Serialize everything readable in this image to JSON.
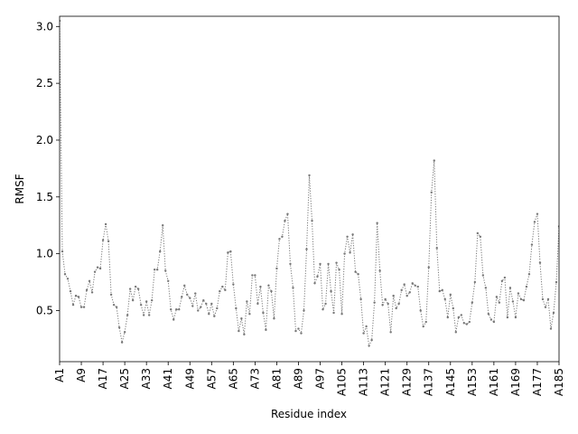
{
  "chart_data": {
    "type": "line",
    "xlabel": "Residue index",
    "ylabel": "RMSF",
    "categories": [
      "A1",
      null,
      null,
      null,
      null,
      null,
      null,
      null,
      "A9",
      null,
      null,
      null,
      null,
      null,
      null,
      null,
      "A17",
      null,
      null,
      null,
      null,
      null,
      null,
      null,
      "A25",
      null,
      null,
      null,
      null,
      null,
      null,
      null,
      "A33",
      null,
      null,
      null,
      null,
      null,
      null,
      null,
      "A41",
      null,
      null,
      null,
      null,
      null,
      null,
      null,
      "A49",
      null,
      null,
      null,
      null,
      null,
      null,
      null,
      "A57",
      null,
      null,
      null,
      null,
      null,
      null,
      null,
      "A65",
      null,
      null,
      null,
      null,
      null,
      null,
      null,
      "A73",
      null,
      null,
      null,
      null,
      null,
      null,
      null,
      "A81",
      null,
      null,
      null,
      null,
      null,
      null,
      null,
      "A89",
      null,
      null,
      null,
      null,
      null,
      null,
      null,
      "A97",
      null,
      null,
      null,
      null,
      null,
      null,
      null,
      "A105",
      null,
      null,
      null,
      null,
      null,
      null,
      null,
      "A113",
      null,
      null,
      null,
      null,
      null,
      null,
      null,
      "A121",
      null,
      null,
      null,
      null,
      null,
      null,
      null,
      "A129",
      null,
      null,
      null,
      null,
      null,
      null,
      null,
      "A137",
      null,
      null,
      null,
      null,
      null,
      null,
      null,
      "A145",
      null,
      null,
      null,
      null,
      null,
      null,
      null,
      "A153",
      null,
      null,
      null,
      null,
      null,
      null,
      null,
      "A161",
      null,
      null,
      null,
      null,
      null,
      null,
      null,
      "A169",
      null,
      null,
      null,
      null,
      null,
      null,
      null,
      "A177",
      null,
      null,
      null,
      null,
      null,
      null,
      null,
      "A185"
    ],
    "series": [
      {
        "color": "#777777",
        "values": [
          3.05,
          1.02,
          0.82,
          0.78,
          0.67,
          0.55,
          0.63,
          0.62,
          0.53,
          0.53,
          0.68,
          0.76,
          0.66,
          0.84,
          0.88,
          0.87,
          1.12,
          1.26,
          1.11,
          0.64,
          0.55,
          0.53,
          0.35,
          0.22,
          0.31,
          0.46,
          0.69,
          0.59,
          0.71,
          0.69,
          0.55,
          0.46,
          0.58,
          0.46,
          0.59,
          0.86,
          0.86,
          1.02,
          1.25,
          0.85,
          0.76,
          0.51,
          0.42,
          0.51,
          0.51,
          0.62,
          0.72,
          0.64,
          0.61,
          0.54,
          0.65,
          0.5,
          0.53,
          0.59,
          0.56,
          0.47,
          0.56,
          0.45,
          0.52,
          0.67,
          0.71,
          0.68,
          1.01,
          1.02,
          0.73,
          0.52,
          0.32,
          0.43,
          0.29,
          0.58,
          0.47,
          0.81,
          0.81,
          0.56,
          0.71,
          0.48,
          0.33,
          0.72,
          0.67,
          0.43,
          0.87,
          1.13,
          1.15,
          1.29,
          1.35,
          0.91,
          0.7,
          0.32,
          0.34,
          0.3,
          0.5,
          1.04,
          1.69,
          1.29,
          0.74,
          0.8,
          0.91,
          0.51,
          0.56,
          0.91,
          0.67,
          0.48,
          0.92,
          0.86,
          0.47,
          1.0,
          1.15,
          1.01,
          1.17,
          0.84,
          0.82,
          0.6,
          0.3,
          0.36,
          0.19,
          0.24,
          0.57,
          1.27,
          0.85,
          0.55,
          0.6,
          0.56,
          0.31,
          0.63,
          0.52,
          0.56,
          0.68,
          0.73,
          0.63,
          0.66,
          0.74,
          0.72,
          0.71,
          0.5,
          0.36,
          0.4,
          0.88,
          1.54,
          1.82,
          1.05,
          0.67,
          0.68,
          0.6,
          0.44,
          0.64,
          0.52,
          0.31,
          0.44,
          0.46,
          0.39,
          0.38,
          0.4,
          0.57,
          0.75,
          1.18,
          1.15,
          0.81,
          0.7,
          0.47,
          0.42,
          0.4,
          0.62,
          0.57,
          0.76,
          0.79,
          0.44,
          0.7,
          0.58,
          0.44,
          0.65,
          0.6,
          0.59,
          0.71,
          0.82,
          1.08,
          1.28,
          1.35,
          0.92,
          0.6,
          0.53,
          0.6,
          0.34,
          0.48,
          0.75,
          1.24
        ]
      }
    ],
    "ylim": [
      0.05,
      3.09
    ],
    "yticks": [
      0.5,
      {
        "value": 1,
        "label": "1.0"
      },
      1.5,
      {
        "value": 2,
        "label": "2.0"
      },
      2.5,
      {
        "value": 3,
        "label": "3.0"
      }
    ]
  }
}
